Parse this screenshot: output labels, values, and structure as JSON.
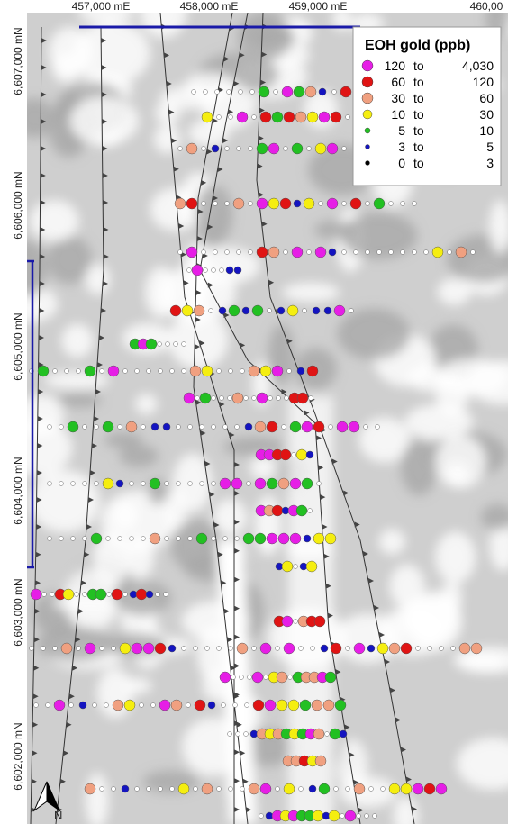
{
  "map": {
    "x_labels": [
      "457,000 mE",
      "458,000 mE",
      "459,000 mE",
      "460,00"
    ],
    "y_labels": [
      "6,607,000 mN",
      "6,606,000 mN",
      "6,605,000 mN",
      "6,604,000 mN",
      "6,603,000 mN",
      "6,602,000 mN"
    ],
    "north": "N",
    "legend": {
      "title": "EOH gold (ppb)",
      "connector": "to",
      "items": [
        {
          "min": "120",
          "max": "4,030",
          "color": "#e61ee6"
        },
        {
          "min": "60",
          "max": "120",
          "color": "#e01414"
        },
        {
          "min": "30",
          "max": "60",
          "color": "#f0a080"
        },
        {
          "min": "10",
          "max": "30",
          "color": "#f5ee10"
        },
        {
          "min": "5",
          "max": "10",
          "color": "#22c022"
        },
        {
          "min": "3",
          "max": "5",
          "color": "#1414c0"
        },
        {
          "min": "0",
          "max": "3",
          "color": "#000000"
        }
      ]
    }
  }
}
